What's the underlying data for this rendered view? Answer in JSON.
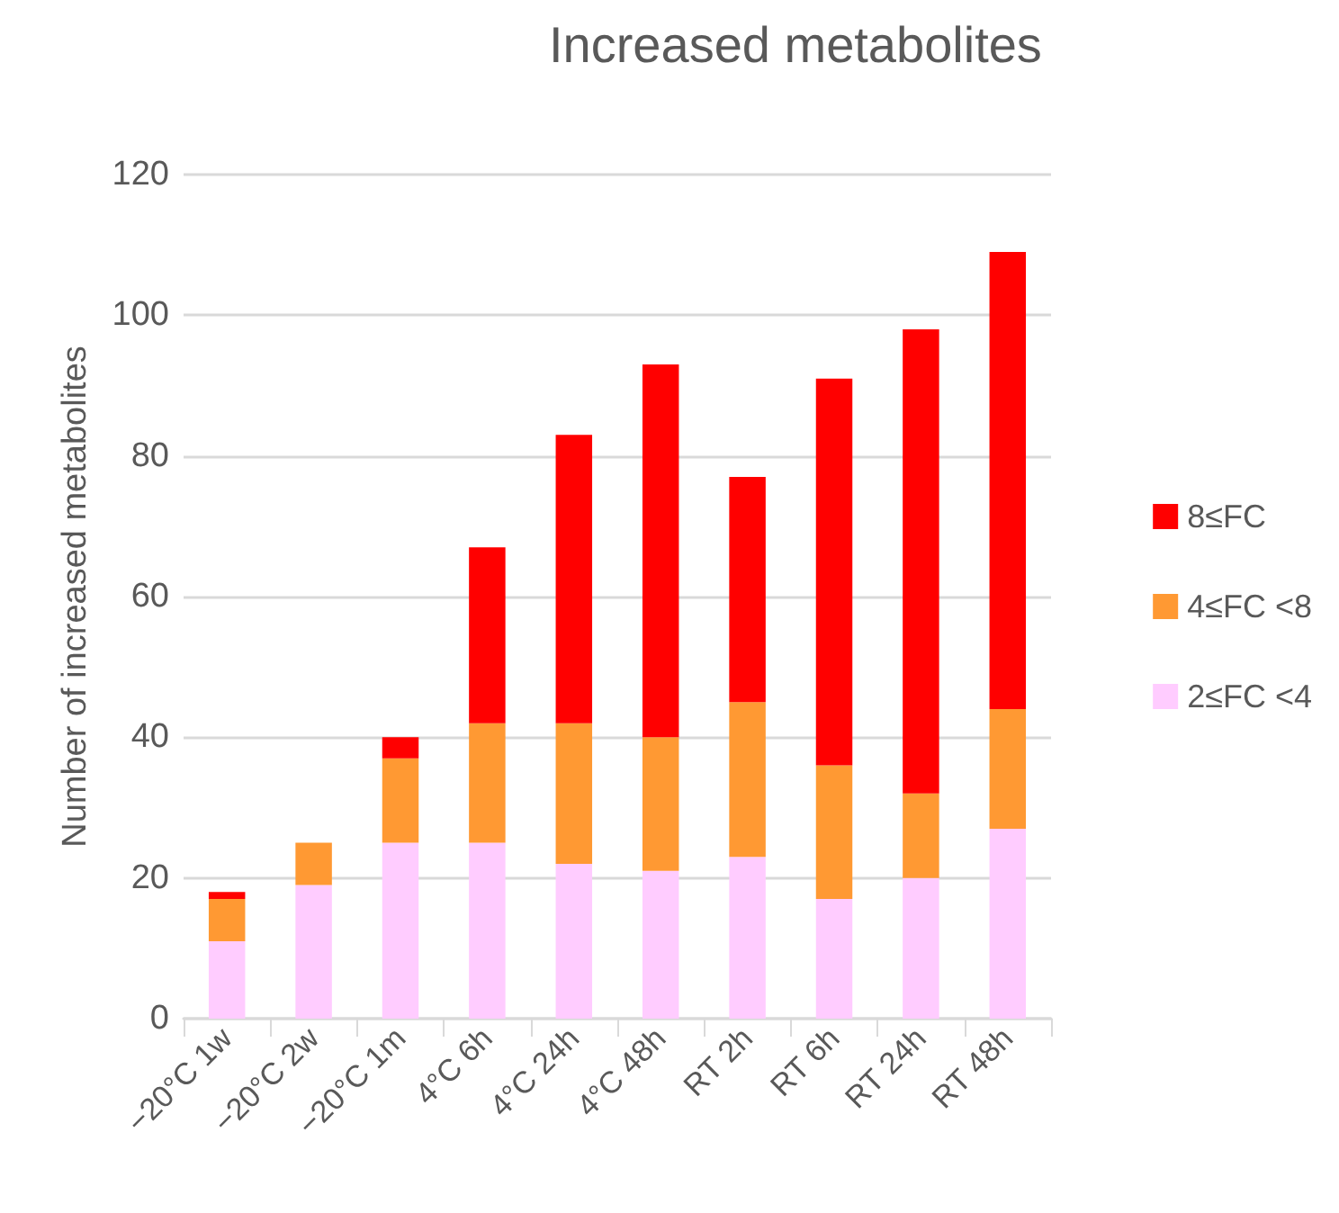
{
  "chart_data": {
    "type": "bar",
    "title": "Increased metabolites",
    "ylabel": "Number of increased metabolites",
    "categories": [
      "−20°C 1w",
      "−20°C 2w",
      "−20°C 1m",
      "4°C 6h",
      "4°C 24h",
      "4°C 48h",
      "RT 2h",
      "RT 6h",
      "RT 24h",
      "RT 48h"
    ],
    "series": [
      {
        "name": "2≤FC <4",
        "color": "#ffccff",
        "values": [
          11,
          19,
          25,
          25,
          22,
          21,
          23,
          17,
          20,
          27
        ]
      },
      {
        "name": "4≤FC <8",
        "color": "#ff9933",
        "values": [
          6,
          6,
          12,
          17,
          20,
          19,
          22,
          19,
          12,
          17
        ]
      },
      {
        "name": "8≤FC",
        "color": "#ff0000",
        "values": [
          1,
          0,
          3,
          25,
          41,
          53,
          32,
          55,
          66,
          65
        ]
      }
    ],
    "stacked": true,
    "ylim": [
      0,
      120
    ],
    "yticks": [
      0,
      20,
      40,
      60,
      80,
      100,
      120
    ],
    "grid": "y",
    "legend": "right"
  }
}
